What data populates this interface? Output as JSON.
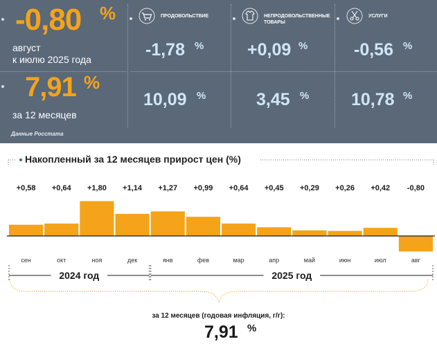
{
  "summary": {
    "month_value": "-0,80",
    "month_unit": "%",
    "month_label_line1": "август",
    "month_label_line2": "к июлю 2025 года",
    "year_value": "7,91",
    "year_unit": "%",
    "year_label": "за 12 месяцев",
    "source": "Данные Росстата"
  },
  "categories": [
    {
      "name": "ПРОДОВОЛЬСТВИЕ",
      "icon": "shopping-cart-icon",
      "month": "-1,78",
      "year": "10,09",
      "unit": "%"
    },
    {
      "name": "НЕПРОДОВОЛЬСТВЕННЫЕ ТОВАРЫ",
      "icon": "clothing-icon",
      "month": "+0,09",
      "year": "3,45",
      "unit": "%"
    },
    {
      "name": "УСЛУГИ",
      "icon": "scissors-icon",
      "month": "-0,56",
      "year": "10,78",
      "unit": "%"
    }
  ],
  "colors": {
    "panel": "#5a6878",
    "accent": "#f5a31a",
    "value_blue": "#cfe6f6"
  },
  "chart_data": {
    "type": "bar",
    "title": "Накопленный за 12 месяцев прирост цен (%)",
    "categories": [
      "сен",
      "окт",
      "ноя",
      "дек",
      "янв",
      "фев",
      "мар",
      "апр",
      "май",
      "июн",
      "июл",
      "авг"
    ],
    "values": [
      0.58,
      0.64,
      1.8,
      1.14,
      1.27,
      0.99,
      0.64,
      0.45,
      0.29,
      0.26,
      0.42,
      -0.8
    ],
    "value_labels": [
      "+0,58",
      "+0,64",
      "+1,80",
      "+1,14",
      "+1,27",
      "+0,99",
      "+0,64",
      "+0,45",
      "+0,29",
      "+0,26",
      "+0,42",
      "-0,80"
    ],
    "year_groups": [
      {
        "label": "2024 год",
        "count": 4
      },
      {
        "label": "2025 год",
        "count": 8
      }
    ],
    "footer_label": "за 12 месяцев (годовая инфляция, г/г):",
    "footer_value": "7,91",
    "footer_unit": "%",
    "color": "#f5a31a"
  }
}
